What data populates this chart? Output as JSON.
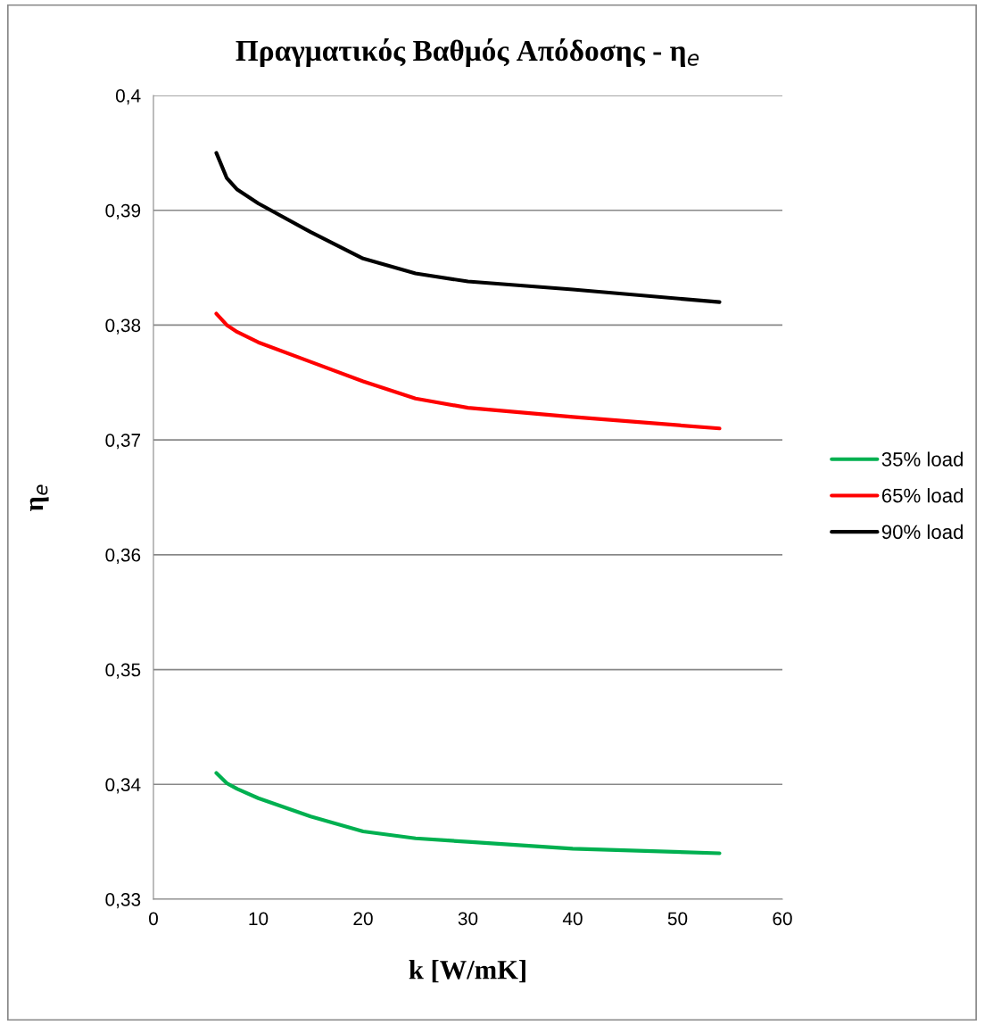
{
  "chart_data": {
    "type": "line",
    "title": "Πραγματικός Βαθμός Απόδοσης - η$_{e}$",
    "xlabel": "k [W/mK]",
    "ylabel": "η$_{e}$",
    "xlim": [
      0,
      60
    ],
    "xticks": [
      0,
      10,
      20,
      30,
      40,
      50,
      60
    ],
    "ylim": [
      0.33,
      0.4
    ],
    "yticks": [
      {
        "value": 0.33,
        "label": "0,33"
      },
      {
        "value": 0.34,
        "label": "0,34"
      },
      {
        "value": 0.35,
        "label": "0,35"
      },
      {
        "value": 0.36,
        "label": "0,36"
      },
      {
        "value": 0.37,
        "label": "0,37"
      },
      {
        "value": 0.38,
        "label": "0,38"
      },
      {
        "value": 0.39,
        "label": "0,39"
      },
      {
        "value": 0.4,
        "label": "0,4"
      }
    ],
    "grid": "y",
    "legend": "right",
    "marker": "none",
    "line_style": "solid",
    "x": [
      6,
      7,
      8,
      10,
      15,
      20,
      25,
      30,
      40,
      54
    ],
    "series": [
      {
        "name": "35% load",
        "color": "#00b050",
        "values": [
          0.341,
          0.3401,
          0.3396,
          0.3388,
          0.3372,
          0.3359,
          0.3353,
          0.335,
          0.3344,
          0.334
        ]
      },
      {
        "name": "65% load",
        "color": "#ff0000",
        "values": [
          0.381,
          0.38,
          0.3794,
          0.3785,
          0.3768,
          0.3751,
          0.3736,
          0.3728,
          0.372,
          0.371
        ]
      },
      {
        "name": "90% load",
        "color": "#000000",
        "values": [
          0.395,
          0.3928,
          0.3918,
          0.3906,
          0.3881,
          0.3858,
          0.3845,
          0.3838,
          0.3831,
          0.382
        ]
      }
    ]
  }
}
